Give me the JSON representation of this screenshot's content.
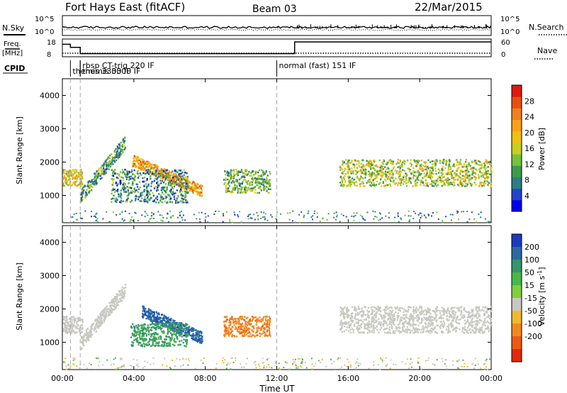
{
  "header": {
    "title": "Fort Hays East (fitACF)",
    "beam": "Beam 03",
    "date": "22/Mar/2015"
  },
  "status_panel": {
    "nsky_label": "N.Sky",
    "nsky_ticks": [
      "10^5",
      "10^0"
    ],
    "nsearch_label": "N.Search",
    "nsearch_ticks": [
      "10^5",
      "10^0"
    ],
    "freq_label_1": "Freq.",
    "freq_label_2": "[MHz]",
    "freq_ticks": [
      "18",
      "8"
    ],
    "nave_label": "Nave",
    "nave_ticks": [
      "60",
      "0"
    ],
    "cpid_label": "CPID",
    "cpid_entries": [
      {
        "text": "rbsp CT-trig 220 IF",
        "hour": 1.0,
        "row": 0
      },
      {
        "text": "themis 3300 IF",
        "hour": 0.45,
        "row": 1
      },
      {
        "text": "themis 3300 IF",
        "hour": 1.0,
        "row": 1
      },
      {
        "text": "normal (fast) 151 IF",
        "hour": 12.0,
        "row": 0
      }
    ],
    "freq_steps": [
      {
        "from": 0,
        "to": 0.45,
        "mhz": 16
      },
      {
        "from": 0.45,
        "to": 1.0,
        "mhz": 14
      },
      {
        "from": 1.0,
        "to": 13.0,
        "mhz": 10
      },
      {
        "from": 13.0,
        "to": 24.0,
        "mhz": 17.5
      }
    ],
    "nave_value": 6
  },
  "x_axis": {
    "label": "Time UT",
    "ticks": [
      "00:00",
      "04:00",
      "08:00",
      "12:00",
      "16:00",
      "20:00",
      "00:00"
    ]
  },
  "chart_data": [
    {
      "type": "heatmap",
      "title": "Power",
      "ylabel": "Slant Range [km]",
      "xlabel": "Time UT",
      "x_range_hours": [
        0,
        24
      ],
      "y_range_km": [
        180,
        4500
      ],
      "y_ticks": [
        "1000",
        "2000",
        "3000",
        "4000"
      ],
      "colorbar": {
        "label": "Power [dB]",
        "ticks": [
          "4",
          "8",
          "12",
          "16",
          "20",
          "24",
          "28"
        ],
        "range": [
          0,
          32
        ],
        "colors": [
          "#0000ee",
          "#2244cc",
          "#2c7f7f",
          "#3b9b4b",
          "#77c03c",
          "#c8cf1e",
          "#f0c010",
          "#f8a018",
          "#f08020",
          "#e85010",
          "#dd1a10"
        ]
      },
      "echo_regions": [
        {
          "name": "early band",
          "t0": 0.0,
          "t1": 1.1,
          "r0": 1300,
          "r1": 1800,
          "value": 18
        },
        {
          "name": "rising arc",
          "t0": 1.0,
          "t1": 3.5,
          "r0": 1000,
          "r1": 2700,
          "value": 10
        },
        {
          "name": "main descending band",
          "t0": 3.9,
          "t1": 7.8,
          "r0": 900,
          "r1": 2100,
          "value": 22
        },
        {
          "name": "lower cluster",
          "t0": 2.7,
          "t1": 7.0,
          "r0": 800,
          "r1": 1800,
          "value": 9
        },
        {
          "name": "mid-day patch",
          "t0": 9.0,
          "t1": 11.6,
          "r0": 1100,
          "r1": 1800,
          "value": 12
        },
        {
          "name": "evening band",
          "t0": 15.5,
          "t1": 24.0,
          "r0": 1300,
          "r1": 2100,
          "value": 15
        }
      ]
    },
    {
      "type": "heatmap",
      "title": "Velocity",
      "ylabel": "Slant Range [km]",
      "xlabel": "Time UT",
      "x_range_hours": [
        0,
        24
      ],
      "y_range_km": [
        180,
        4500
      ],
      "y_ticks": [
        "1000",
        "2000",
        "3000",
        "4000"
      ],
      "colorbar": {
        "label": "Velocity [m s^-1]",
        "ticks": [
          "200",
          "100",
          "50",
          "15",
          "-15",
          "-50",
          "-100",
          "-200"
        ],
        "colors": [
          "#1a3ac0",
          "#2a6aa0",
          "#38946a",
          "#48b848",
          "#7ed040",
          "#c8c8c0",
          "#f0b830",
          "#f08a20",
          "#ec5a18",
          "#e02a10"
        ]
      },
      "echo_regions": [
        {
          "name": "early band",
          "t0": 0.0,
          "t1": 1.1,
          "r0": 1300,
          "r1": 1800,
          "value": 0
        },
        {
          "name": "rising arc",
          "t0": 1.0,
          "t1": 3.5,
          "r0": 1000,
          "r1": 2700,
          "value": 0
        },
        {
          "name": "blue band",
          "t0": 4.4,
          "t1": 7.8,
          "r0": 1300,
          "r1": 2100,
          "value": 180
        },
        {
          "name": "green band",
          "t0": 3.8,
          "t1": 7.0,
          "r0": 900,
          "r1": 1600,
          "value": 60
        },
        {
          "name": "orange patch",
          "t0": 9.0,
          "t1": 11.6,
          "r0": 1200,
          "r1": 1800,
          "value": -80
        },
        {
          "name": "evening grey band",
          "t0": 15.5,
          "t1": 24.0,
          "r0": 1300,
          "r1": 2100,
          "value": 0
        }
      ]
    }
  ]
}
